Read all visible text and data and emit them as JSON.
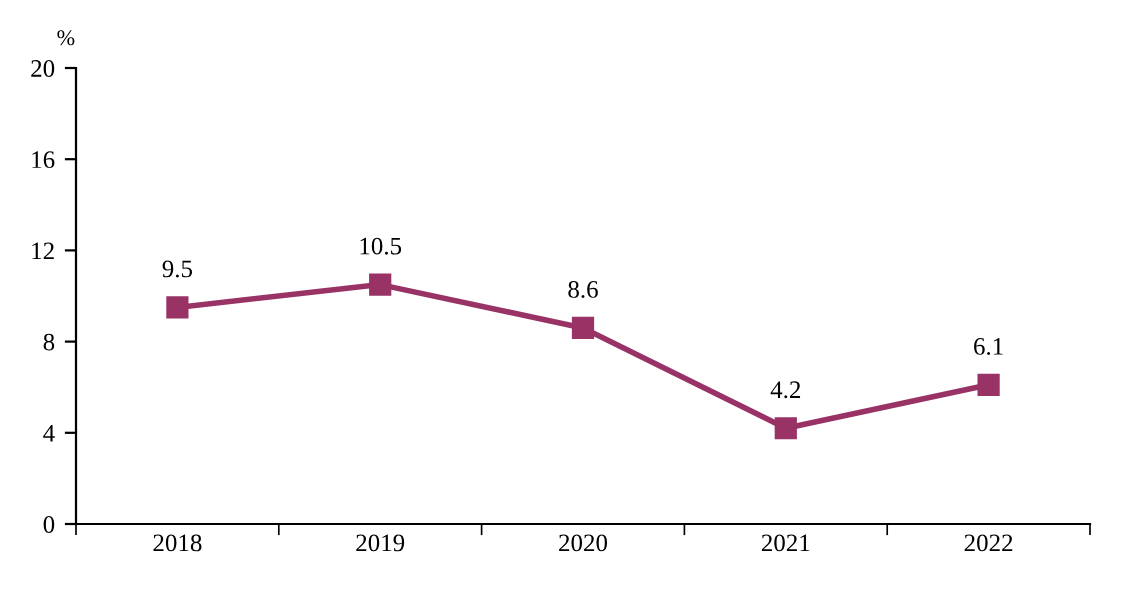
{
  "chart_data": {
    "type": "line",
    "ylabel": "%",
    "categories": [
      "2018",
      "2019",
      "2020",
      "2021",
      "2022"
    ],
    "series": [
      {
        "color": "#993366",
        "values": [
          9.5,
          10.5,
          8.6,
          4.2,
          6.1
        ]
      }
    ],
    "ylim": [
      0,
      20
    ],
    "yticks": [
      0,
      4,
      8,
      12,
      16,
      20
    ],
    "marker": "square",
    "line_style": "solid",
    "data_labels": true,
    "grid": false,
    "legend": false
  }
}
